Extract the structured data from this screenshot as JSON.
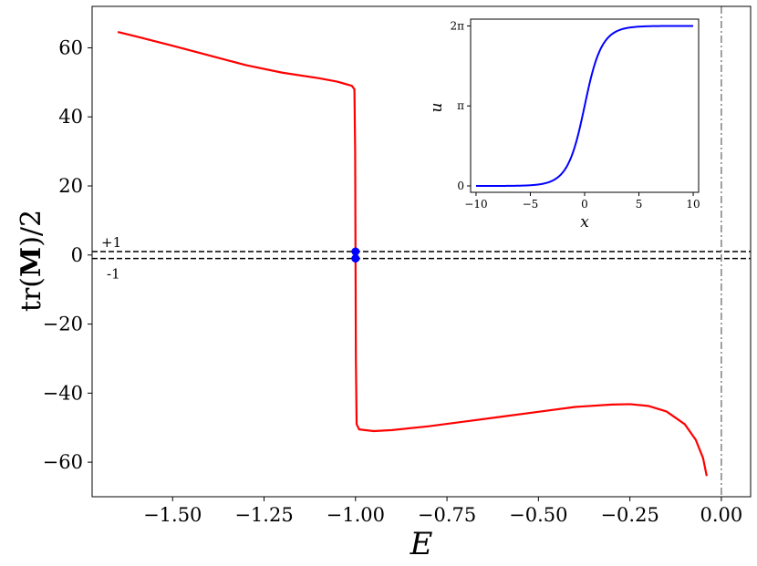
{
  "chart_data": [
    {
      "type": "line",
      "xlabel": "E",
      "ylabel_prefix": "tr(",
      "ylabel_bold": "M",
      "ylabel_suffix": ")/2",
      "xlim": [
        -1.72,
        0.08
      ],
      "ylim": [
        -70,
        72
      ],
      "xticks": [
        -1.5,
        -1.25,
        -1.0,
        -0.75,
        -0.5,
        -0.25,
        0.0
      ],
      "xtick_labels": [
        "−1.50",
        "−1.25",
        "−1.00",
        "−0.75",
        "−0.50",
        "−0.25",
        "0.00"
      ],
      "yticks": [
        60,
        40,
        20,
        0,
        -20,
        -40,
        -60
      ],
      "ytick_labels": [
        "60",
        "40",
        "20",
        "0",
        "−20",
        "−40",
        "−60"
      ],
      "series": [
        {
          "color": "#ff0000",
          "points": [
            [
              -1.65,
              64.6
            ],
            [
              -1.6,
              63.3
            ],
            [
              -1.5,
              60.6
            ],
            [
              -1.4,
              57.8
            ],
            [
              -1.3,
              55.0
            ],
            [
              -1.2,
              52.8
            ],
            [
              -1.1,
              51.2
            ],
            [
              -1.05,
              50.2
            ],
            [
              -1.01,
              49.0
            ],
            [
              -1.003,
              48.0
            ],
            [
              -1.001,
              30.0
            ],
            [
              -1.0,
              0.0
            ],
            [
              -0.999,
              -30.0
            ],
            [
              -0.997,
              -49.0
            ],
            [
              -0.99,
              -50.5
            ],
            [
              -0.95,
              -51.0
            ],
            [
              -0.9,
              -50.7
            ],
            [
              -0.8,
              -49.6
            ],
            [
              -0.7,
              -48.2
            ],
            [
              -0.6,
              -46.8
            ],
            [
              -0.5,
              -45.4
            ],
            [
              -0.4,
              -44.0
            ],
            [
              -0.3,
              -43.3
            ],
            [
              -0.25,
              -43.2
            ],
            [
              -0.2,
              -43.7
            ],
            [
              -0.15,
              -45.3
            ],
            [
              -0.1,
              -49.0
            ],
            [
              -0.07,
              -53.5
            ],
            [
              -0.05,
              -58.8
            ],
            [
              -0.04,
              -64.0
            ]
          ]
        }
      ],
      "markers": [
        [
          -1.0,
          1.0
        ],
        [
          -1.0,
          -1.0
        ]
      ],
      "marker_color": "#0000ff",
      "hlines": [
        1,
        -1
      ],
      "hline_labels": [
        "+1",
        "-1"
      ],
      "vline": 0.0
    },
    {
      "type": "line",
      "xlabel": "x",
      "ylabel": "u",
      "xlim": [
        -10.5,
        10.5
      ],
      "ylim": [
        -0.25,
        6.55
      ],
      "xticks": [
        -10,
        -5,
        0,
        5,
        10
      ],
      "xtick_labels": [
        "−10",
        "−5",
        "0",
        "5",
        "10"
      ],
      "yticks": [
        0,
        3.14159,
        6.28318
      ],
      "ytick_labels": [
        "0",
        "π",
        "2π"
      ],
      "series": [
        {
          "color": "#0000ff",
          "function": "4*atan(exp(x))",
          "x_range": [
            -10,
            10
          ]
        }
      ]
    }
  ]
}
